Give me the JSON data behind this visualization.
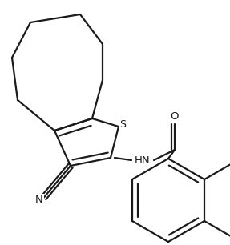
{
  "bg_color": "#ffffff",
  "line_color": "#1a1a1a",
  "line_width": 1.6,
  "figsize": [
    2.87,
    3.06
  ],
  "dpi": 100,
  "xlim": [
    0,
    287
  ],
  "ylim": [
    0,
    306
  ]
}
